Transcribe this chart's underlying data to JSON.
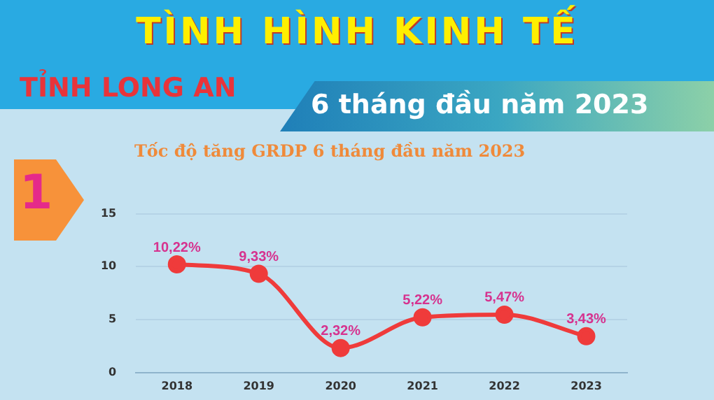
{
  "chart_data": {
    "type": "line",
    "title": "TÌNH HÌNH KINH TẾ",
    "subtitle": "TỈNH LONG AN",
    "annotations": [
      "6 tháng đầu năm 2023",
      "Tốc độ tăng GRDP 6 tháng đầu năm 2023",
      "1"
    ],
    "categories": [
      "2018",
      "2019",
      "2020",
      "2021",
      "2022",
      "2023"
    ],
    "series": [
      {
        "color": "#ef3b3b",
        "values": [
          10.22,
          9.33,
          2.32,
          5.22,
          5.47,
          3.43
        ],
        "value_labels": [
          "10,22%",
          "9,33%",
          "2,32%",
          "5,22%",
          "5,47%",
          "3,43%"
        ]
      }
    ],
    "ylim": [
      0,
      15
    ],
    "yticks": [
      0,
      5,
      10,
      15
    ],
    "grid": "y",
    "legend": false,
    "marker": "circle",
    "line_style": "solid"
  }
}
